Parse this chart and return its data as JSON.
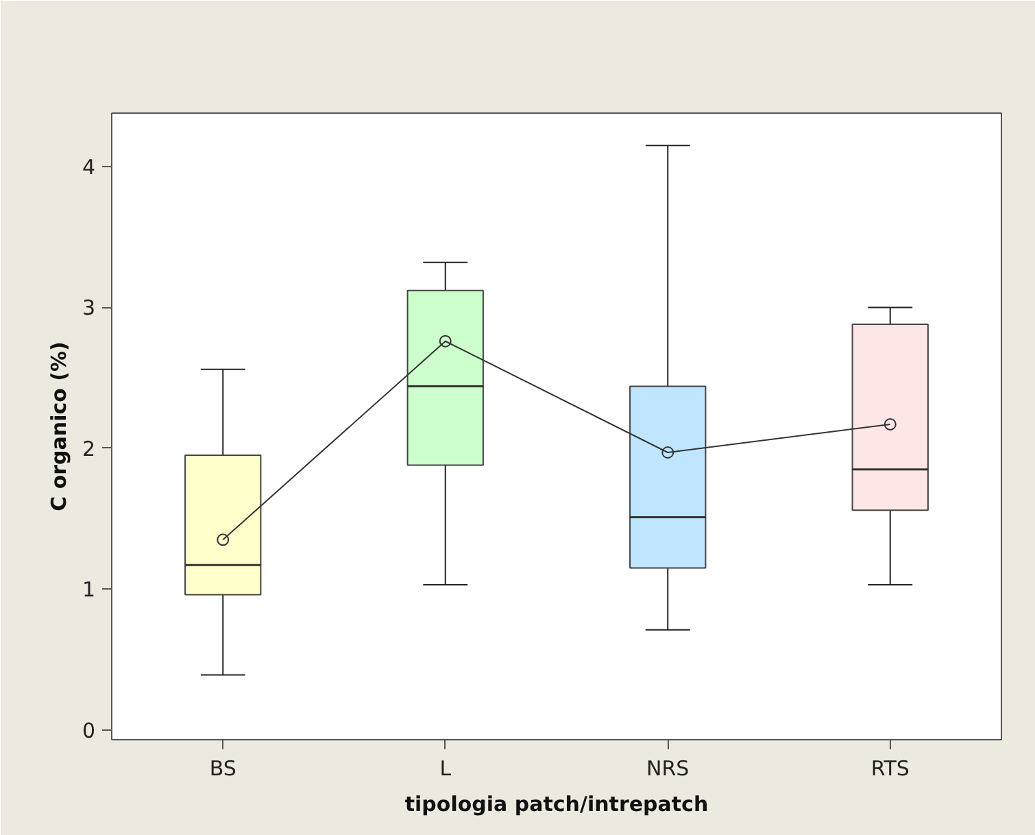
{
  "chart_data": {
    "type": "box",
    "xlabel": "tipologia patch/intrepatch",
    "ylabel": "C organico (%)",
    "categories": [
      "BS",
      "L",
      "NRS",
      "RTS"
    ],
    "colors": [
      "#ffffcc",
      "#ccffcc",
      "#bfe5ff",
      "#ffe6e6"
    ],
    "boxes": [
      {
        "low": 0.39,
        "q1": 0.96,
        "median": 1.17,
        "q3": 1.95,
        "high": 2.56
      },
      {
        "low": 1.03,
        "q1": 1.88,
        "median": 2.44,
        "q3": 3.12,
        "high": 3.32
      },
      {
        "low": 0.71,
        "q1": 1.15,
        "median": 1.51,
        "q3": 2.44,
        "high": 4.15
      },
      {
        "low": 1.03,
        "q1": 1.56,
        "median": 1.85,
        "q3": 2.88,
        "high": 3.0
      }
    ],
    "series": [
      {
        "type": "line",
        "color": "#333333",
        "marker": "circle",
        "values": [
          1.35,
          2.76,
          1.97,
          2.17
        ]
      }
    ],
    "ylim": [
      -0.07,
      4.38
    ],
    "yticks": [
      0,
      1,
      2,
      3,
      4
    ],
    "grid": false
  }
}
